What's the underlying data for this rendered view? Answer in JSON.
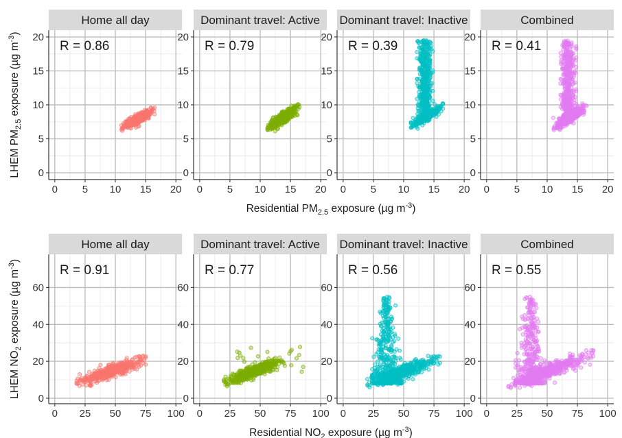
{
  "figure": {
    "rows": [
      {
        "ylabel": {
          "prefix": "LHEM PM",
          "sub": "2.5",
          "mid": " exposure (µg m",
          "sup": "-3",
          "suffix": ")"
        },
        "xlabel": {
          "prefix": "Residential PM",
          "sub": "2.5",
          "mid": " exposure (µg m",
          "sup": "-3",
          "suffix": ")"
        }
      },
      {
        "ylabel": {
          "prefix": "LHEM NO",
          "sub": "2",
          "mid": " exposure (µg m",
          "sup": "-3",
          "suffix": ")"
        },
        "xlabel": {
          "prefix": "Residential NO",
          "sub": "2",
          "mid": " exposure (µg m",
          "sup": "-3",
          "suffix": ")"
        }
      }
    ],
    "colors": {
      "strip_bg": "#d9d9d9",
      "grid": "#bdbdbd",
      "axis": "#333333",
      "home": "#f8766d",
      "active": "#7cae00",
      "inactive": "#00bfc4",
      "combined": "#e17bf2"
    }
  },
  "chart_data": [
    {
      "type": "scatter",
      "panel": "pm25-home",
      "strip": "Home all day",
      "annotation": "R = 0.86",
      "xlim": [
        -1,
        21
      ],
      "ylim": [
        -1,
        21
      ],
      "xticks": [
        0,
        5,
        10,
        15,
        20
      ],
      "yticks": [
        0,
        5,
        10,
        15,
        20
      ],
      "grid": true,
      "color_key": "home",
      "clusters": [
        {
          "x_range": [
            11,
            16.5
          ],
          "y_range": [
            6.2,
            9.6
          ],
          "shape": "diagonal",
          "n": 420
        }
      ]
    },
    {
      "type": "scatter",
      "panel": "pm25-active",
      "strip": "Dominant travel: Active",
      "annotation": "R = 0.79",
      "xlim": [
        -1,
        21
      ],
      "ylim": [
        -1,
        21
      ],
      "xticks": [
        0,
        5,
        10,
        15,
        20
      ],
      "yticks": [
        0,
        5,
        10,
        15,
        20
      ],
      "grid": true,
      "color_key": "active",
      "clusters": [
        {
          "x_range": [
            11.2,
            16.5
          ],
          "y_range": [
            6.1,
            10.1
          ],
          "shape": "diagonal",
          "n": 420
        }
      ]
    },
    {
      "type": "scatter",
      "panel": "pm25-inactive",
      "strip": "Dominant travel: Inactive",
      "annotation": "R = 0.39",
      "xlim": [
        -1,
        21
      ],
      "ylim": [
        -1,
        21
      ],
      "xticks": [
        0,
        5,
        10,
        15,
        20
      ],
      "yticks": [
        0,
        5,
        10,
        15,
        20
      ],
      "grid": true,
      "color_key": "inactive",
      "clusters": [
        {
          "x_range": [
            11.2,
            16.5
          ],
          "y_range": [
            6.5,
            10.2
          ],
          "shape": "diagonal",
          "n": 300
        },
        {
          "x_range": [
            12.2,
            14.8
          ],
          "y_range": [
            8,
            19.5
          ],
          "shape": "column",
          "n": 450
        }
      ]
    },
    {
      "type": "scatter",
      "panel": "pm25-combined",
      "strip": "Combined",
      "annotation": "R = 0.41",
      "xlim": [
        -1,
        21
      ],
      "ylim": [
        -1,
        21
      ],
      "xticks": [
        0,
        5,
        10,
        15,
        20
      ],
      "yticks": [
        0,
        5,
        10,
        15,
        20
      ],
      "grid": true,
      "color_key": "combined",
      "clusters": [
        {
          "x_range": [
            11,
            16.5
          ],
          "y_range": [
            6.1,
            10.2
          ],
          "shape": "diagonal",
          "n": 400
        },
        {
          "x_range": [
            12.2,
            14.8
          ],
          "y_range": [
            8,
            19.5
          ],
          "shape": "column",
          "n": 420
        }
      ]
    },
    {
      "type": "scatter",
      "panel": "no2-home",
      "strip": "Home all day",
      "annotation": "R = 0.91",
      "xlim": [
        -5,
        105
      ],
      "ylim": [
        -3,
        78
      ],
      "xticks": [
        0,
        25,
        50,
        75,
        100
      ],
      "yticks": [
        0,
        20,
        40,
        60
      ],
      "grid": true,
      "color_key": "home",
      "clusters": [
        {
          "x_range": [
            18,
            75
          ],
          "y_range": [
            6,
            23
          ],
          "shape": "diagonal",
          "n": 450
        }
      ]
    },
    {
      "type": "scatter",
      "panel": "no2-active",
      "strip": "Dominant travel: Active",
      "annotation": "R = 0.77",
      "xlim": [
        -5,
        105
      ],
      "ylim": [
        -3,
        78
      ],
      "xticks": [
        0,
        25,
        50,
        75,
        100
      ],
      "yticks": [
        0,
        20,
        40,
        60
      ],
      "grid": true,
      "color_key": "active",
      "clusters": [
        {
          "x_range": [
            20,
            68
          ],
          "y_range": [
            6.5,
            22
          ],
          "shape": "diagonal",
          "n": 480
        },
        {
          "x_range": [
            30,
            88
          ],
          "y_range": [
            14,
            28
          ],
          "shape": "scatter",
          "n": 35
        }
      ]
    },
    {
      "type": "scatter",
      "panel": "no2-inactive",
      "strip": "Dominant travel: Inactive",
      "annotation": "R = 0.56",
      "xlim": [
        -5,
        105
      ],
      "ylim": [
        -3,
        78
      ],
      "xticks": [
        0,
        25,
        50,
        75,
        100
      ],
      "yticks": [
        0,
        20,
        40,
        60
      ],
      "grid": true,
      "color_key": "inactive",
      "clusters": [
        {
          "x_range": [
            20,
            80
          ],
          "y_range": [
            5,
            24
          ],
          "shape": "diagonal",
          "n": 380
        },
        {
          "x_range": [
            24,
            48
          ],
          "y_range": [
            8,
            55
          ],
          "shape": "peak",
          "n": 420
        }
      ]
    },
    {
      "type": "scatter",
      "panel": "no2-combined",
      "strip": "Combined",
      "annotation": "R = 0.55",
      "xlim": [
        -5,
        105
      ],
      "ylim": [
        -3,
        78
      ],
      "xticks": [
        0,
        25,
        50,
        75,
        100
      ],
      "yticks": [
        0,
        20,
        40,
        60
      ],
      "grid": true,
      "color_key": "combined",
      "clusters": [
        {
          "x_range": [
            18,
            88
          ],
          "y_range": [
            5,
            26
          ],
          "shape": "diagonal",
          "n": 400
        },
        {
          "x_range": [
            24,
            48
          ],
          "y_range": [
            8,
            55
          ],
          "shape": "peak",
          "n": 420
        }
      ]
    }
  ]
}
